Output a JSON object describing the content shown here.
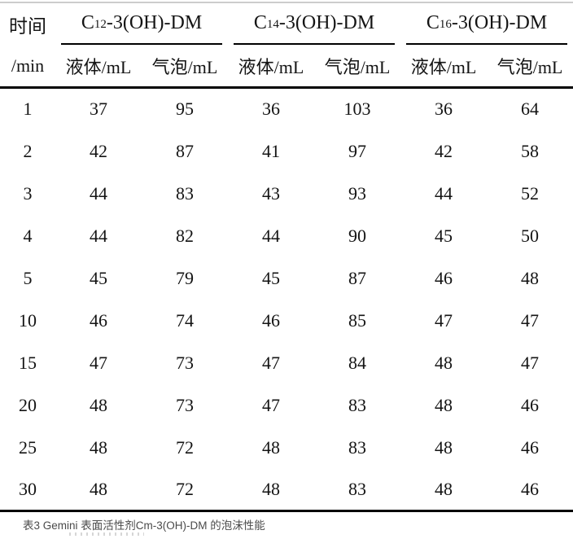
{
  "colors": {
    "background": "#ffffff",
    "rule": "#000000",
    "top_edge_line": "#cccccc",
    "text": "#141414",
    "caption_text": "#4a4a4a"
  },
  "table": {
    "time_header": {
      "line1": "时间",
      "line2": "/min"
    },
    "groups": [
      {
        "prefix": "C",
        "sub": "12",
        "suffix": "-3(OH)-DM",
        "col1": "液体/mL",
        "col2": "气泡/mL"
      },
      {
        "prefix": "C",
        "sub": "14",
        "suffix": "-3(OH)-DM",
        "col1": "液体/mL",
        "col2": "气泡/mL"
      },
      {
        "prefix": "C",
        "sub": "16",
        "suffix": "-3(OH)-DM",
        "col1": "液体/mL",
        "col2": "气泡/mL"
      }
    ],
    "rows": [
      {
        "time": "1",
        "values": [
          "37",
          "95",
          "36",
          "103",
          "36",
          "64"
        ]
      },
      {
        "time": "2",
        "values": [
          "42",
          "87",
          "41",
          "97",
          "42",
          "58"
        ]
      },
      {
        "time": "3",
        "values": [
          "44",
          "83",
          "43",
          "93",
          "44",
          "52"
        ]
      },
      {
        "time": "4",
        "values": [
          "44",
          "82",
          "44",
          "90",
          "45",
          "50"
        ]
      },
      {
        "time": "5",
        "values": [
          "45",
          "79",
          "45",
          "87",
          "46",
          "48"
        ]
      },
      {
        "time": "10",
        "values": [
          "46",
          "74",
          "46",
          "85",
          "47",
          "47"
        ]
      },
      {
        "time": "15",
        "values": [
          "47",
          "73",
          "47",
          "84",
          "48",
          "47"
        ]
      },
      {
        "time": "20",
        "values": [
          "48",
          "73",
          "47",
          "83",
          "48",
          "46"
        ]
      },
      {
        "time": "25",
        "values": [
          "48",
          "72",
          "48",
          "83",
          "48",
          "46"
        ]
      },
      {
        "time": "30",
        "values": [
          "48",
          "72",
          "48",
          "83",
          "48",
          "46"
        ]
      }
    ]
  },
  "caption": {
    "text": "表3 Gemini 表面活性剂Cm-3(OH)-DM 的泡沫性能"
  }
}
